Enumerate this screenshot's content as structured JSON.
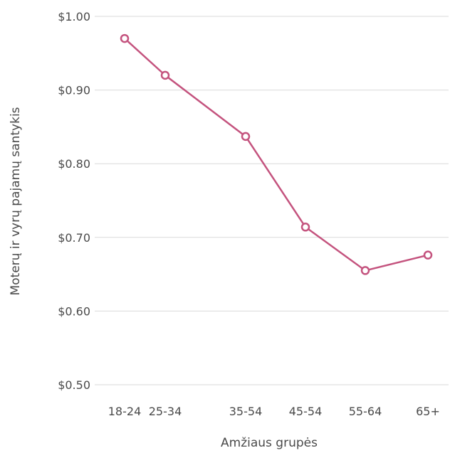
{
  "chart_data": {
    "type": "line",
    "xlabel": "Amžiaus grupės",
    "ylabel": "Moterų ir vyrų pajamų santykis",
    "categories": [
      "18-24",
      "25-34",
      "35-54",
      "45-54",
      "55-64",
      "65+"
    ],
    "series": [
      {
        "values": [
          0.97,
          0.92,
          0.837,
          0.714,
          0.655,
          0.676
        ]
      }
    ],
    "ylim": [
      0.5,
      1.0
    ],
    "yticks": [
      "$0.50",
      "$0.60",
      "$0.70",
      "$0.80",
      "$0.90",
      "$1.00"
    ],
    "grid": true,
    "line_color": "#c4537e"
  }
}
